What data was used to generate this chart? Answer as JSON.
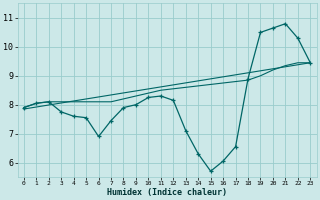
{
  "xlabel": "Humidex (Indice chaleur)",
  "background_color": "#cce8e8",
  "grid_color": "#99cccc",
  "line_color": "#006666",
  "xlim": [
    -0.5,
    23.5
  ],
  "ylim": [
    5.5,
    11.5
  ],
  "xticks": [
    0,
    1,
    2,
    3,
    4,
    5,
    6,
    7,
    8,
    9,
    10,
    11,
    12,
    13,
    14,
    15,
    16,
    17,
    18,
    19,
    20,
    21,
    22,
    23
  ],
  "yticks": [
    6,
    7,
    8,
    9,
    10,
    11
  ],
  "series1_x": [
    0,
    1,
    2,
    3,
    4,
    5,
    6,
    7,
    8,
    9,
    10,
    11,
    12,
    13,
    14,
    15,
    16,
    17,
    18,
    19,
    20,
    21,
    22,
    23
  ],
  "series1_y": [
    7.9,
    8.05,
    8.1,
    7.75,
    7.6,
    7.55,
    6.9,
    7.45,
    7.9,
    8.0,
    8.25,
    8.3,
    8.15,
    7.1,
    6.3,
    5.7,
    6.05,
    6.55,
    8.9,
    10.5,
    10.65,
    10.8,
    10.3,
    9.45
  ],
  "series2_x": [
    0,
    1,
    2,
    3,
    4,
    5,
    6,
    7,
    8,
    9,
    10,
    11,
    12,
    13,
    14,
    15,
    16,
    17,
    18,
    19,
    20,
    21,
    22,
    23
  ],
  "series2_y": [
    7.9,
    8.05,
    8.1,
    8.1,
    8.1,
    8.1,
    8.1,
    8.1,
    8.2,
    8.3,
    8.4,
    8.5,
    8.55,
    8.6,
    8.65,
    8.7,
    8.75,
    8.8,
    8.85,
    9.0,
    9.2,
    9.35,
    9.45,
    9.45
  ],
  "series3_x": [
    0,
    23
  ],
  "series3_y": [
    7.85,
    9.45
  ]
}
